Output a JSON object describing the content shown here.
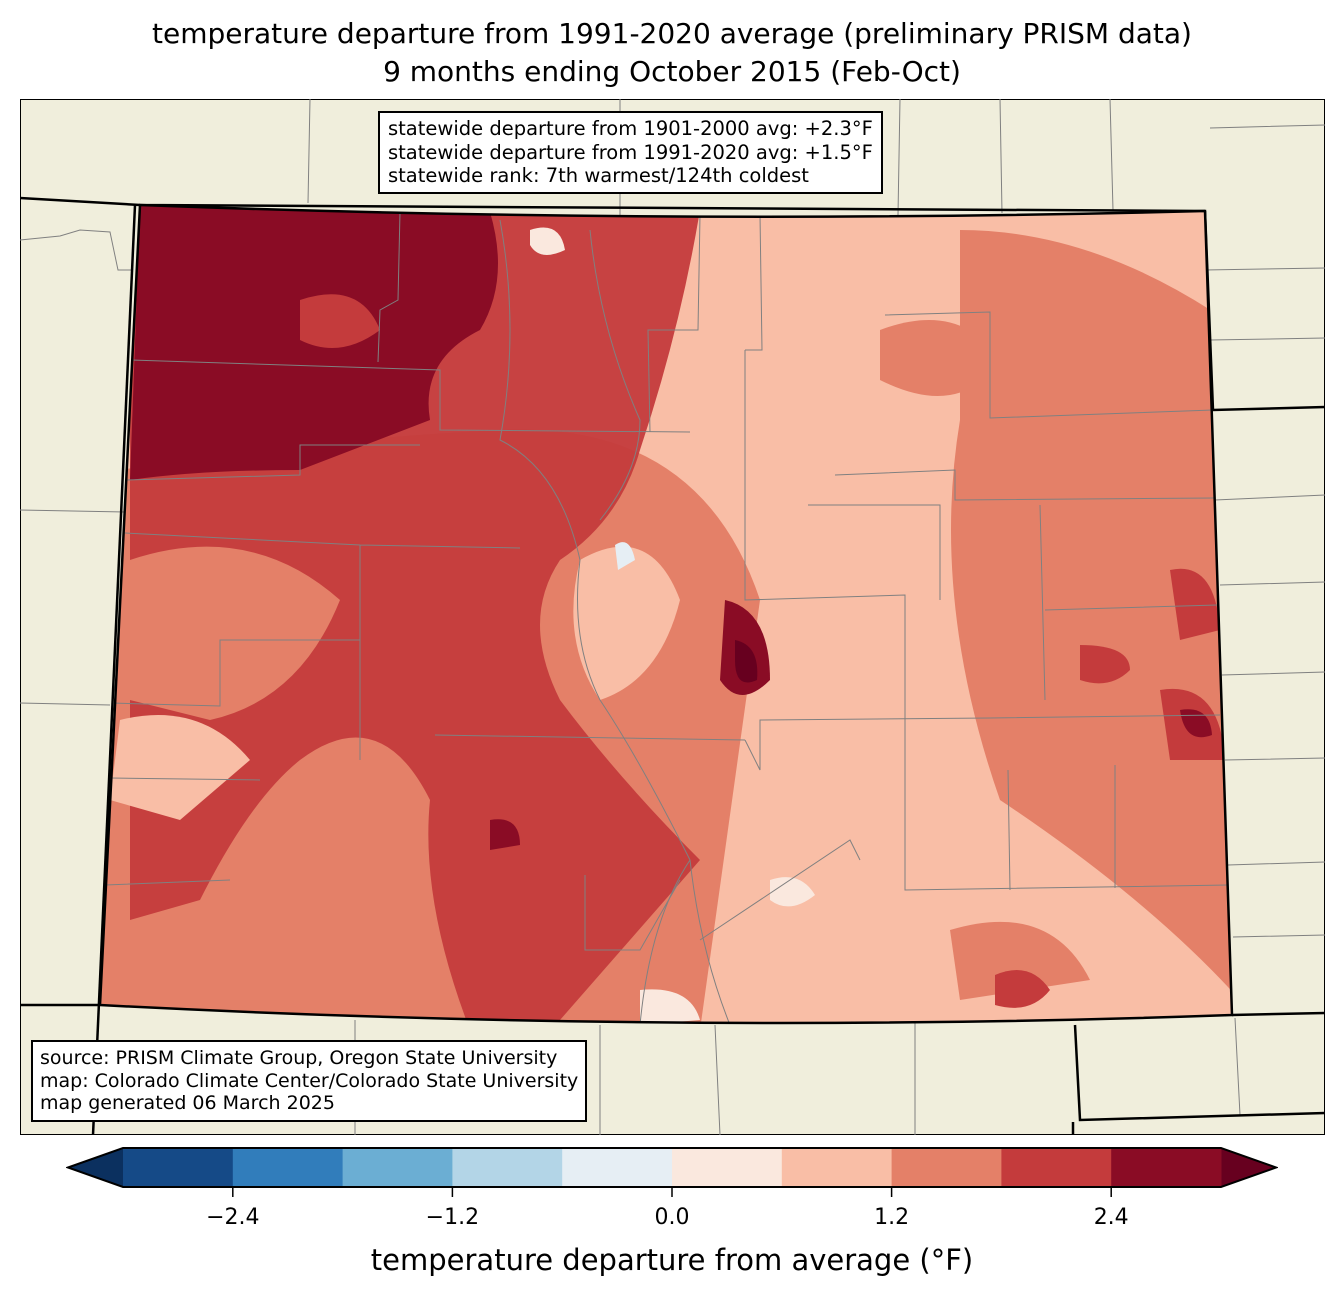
{
  "title": {
    "line1": "temperature departure from 1991-2020 average (preliminary PRISM data)",
    "line2": "9 months ending October 2015 (Feb-Oct)"
  },
  "stats": {
    "line1": "statewide departure from 1901-2000 avg: +2.3°F",
    "line2": "statewide departure from 1991-2020 avg: +1.5°F",
    "line3": "statewide rank: 7th warmest/124th coldest"
  },
  "source": {
    "line1": "source: PRISM Climate Group, Oregon State University",
    "line2": "map: Colorado Climate Center/Colorado State University",
    "line3": "map generated 06 March 2025"
  },
  "colorbar": {
    "label": "temperature departure from average (°F)",
    "bounds": [
      -3.0,
      -2.4,
      -1.8,
      -1.2,
      -0.6,
      0.0,
      0.6,
      1.2,
      1.8,
      2.4,
      3.0
    ],
    "colors": [
      "#154a87",
      "#317dbb",
      "#6baed3",
      "#b3d5e7",
      "#e6eef4",
      "#fae8de",
      "#f9bea6",
      "#e48068",
      "#c43b3c",
      "#8a0c25"
    ],
    "under_color": "#0b305f",
    "over_color": "#67001f",
    "ticks": [
      "−2.4",
      "−1.2",
      "0.0",
      "1.2",
      "2.4"
    ],
    "tick_values": [
      -2.4,
      -1.2,
      0.0,
      1.2,
      2.4
    ]
  },
  "map_colors": {
    "land": "#f0eedc",
    "border": "#000000",
    "county": "#808080"
  }
}
